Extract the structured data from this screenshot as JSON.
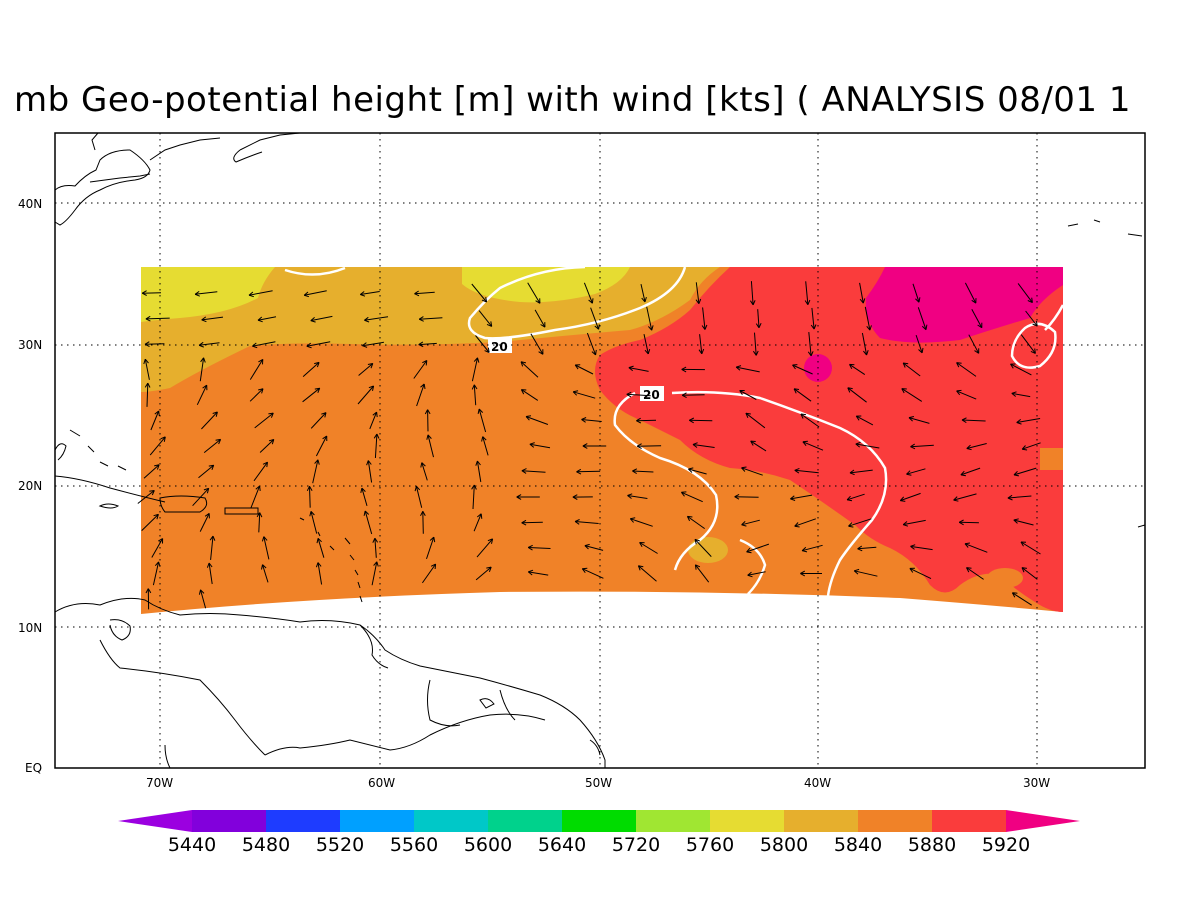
{
  "title": "mb Geo-potential height [m] with wind [kts] ( ANALYSIS 08/01 1",
  "colors": {
    "c5440": "#9b00e0",
    "c5480": "#8200dc",
    "c5520": "#1e3cff",
    "c5560": "#00a0ff",
    "c5600": "#00c8c8",
    "c5640": "#00d28c",
    "c5720": "#00dc00",
    "c5760": "#a0e632",
    "c5800": "#e6dc32",
    "c5840": "#e6af2d",
    "c5880": "#f08228",
    "c5920": "#fa3c3c",
    "top": "#f00082",
    "contour": "#ffffff"
  },
  "colorbar": {
    "labels": [
      "5440",
      "5480",
      "5520",
      "5560",
      "5600",
      "5640",
      "5720",
      "5760",
      "5800",
      "5840",
      "5880",
      "5920"
    ]
  },
  "axes": {
    "x_labels": [
      "70W",
      "60W",
      "50W",
      "40W",
      "30W"
    ],
    "y_labels": [
      "40N",
      "30N",
      "20N",
      "10N",
      "EQ"
    ]
  },
  "contour_labels": [
    "20",
    "20"
  ]
}
